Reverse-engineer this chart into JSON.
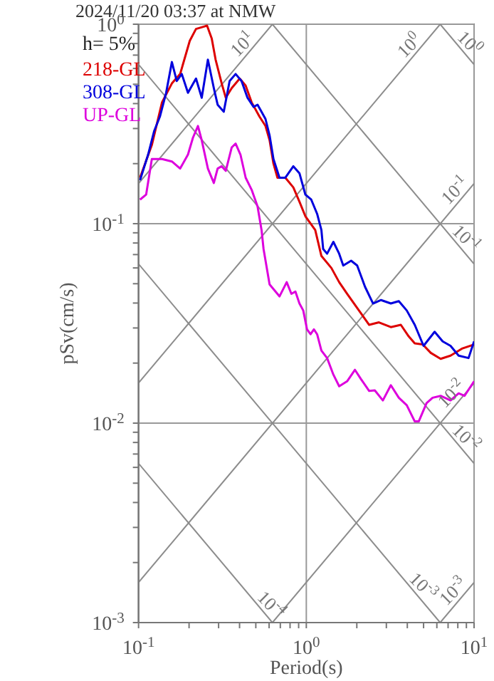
{
  "chart_data": {
    "type": "line",
    "title": "2024/11/20 03:37 at NMW",
    "xlabel": "Period(s)",
    "ylabel": "pSv(cm/s)",
    "log": "xy",
    "grid": true,
    "legend": "top left",
    "xlim": [
      0.1,
      10
    ],
    "ylim": [
      0.001,
      1
    ],
    "xticks": [
      {
        "value": 0.1,
        "label": "10$^{-1}$"
      },
      {
        "value": 0.2,
        "label": null
      },
      {
        "value": 0.3,
        "label": null
      },
      {
        "value": 0.4,
        "label": null
      },
      {
        "value": 0.5,
        "label": null
      },
      {
        "value": 0.6,
        "label": null
      },
      {
        "value": 0.7,
        "label": null
      },
      {
        "value": 0.8,
        "label": null
      },
      {
        "value": 0.9,
        "label": null
      },
      {
        "value": 1,
        "label": "10$^{0}$"
      },
      {
        "value": 2,
        "label": null
      },
      {
        "value": 3,
        "label": null
      },
      {
        "value": 4,
        "label": null
      },
      {
        "value": 5,
        "label": null
      },
      {
        "value": 6,
        "label": null
      },
      {
        "value": 7,
        "label": null
      },
      {
        "value": 8,
        "label": null
      },
      {
        "value": 9,
        "label": null
      },
      {
        "value": 10,
        "label": "10$^{1}$"
      }
    ],
    "yticks": [
      {
        "value": 0.001,
        "label": "10$^{-3}$"
      },
      {
        "value": 0.002,
        "label": null
      },
      {
        "value": 0.003,
        "label": null
      },
      {
        "value": 0.004,
        "label": null
      },
      {
        "value": 0.005,
        "label": null
      },
      {
        "value": 0.006,
        "label": null
      },
      {
        "value": 0.007,
        "label": null
      },
      {
        "value": 0.008,
        "label": null
      },
      {
        "value": 0.009,
        "label": null
      },
      {
        "value": 0.01,
        "label": "10$^{-2}$"
      },
      {
        "value": 0.02,
        "label": null
      },
      {
        "value": 0.03,
        "label": null
      },
      {
        "value": 0.04,
        "label": null
      },
      {
        "value": 0.05,
        "label": null
      },
      {
        "value": 0.06,
        "label": null
      },
      {
        "value": 0.07,
        "label": null
      },
      {
        "value": 0.08,
        "label": null
      },
      {
        "value": 0.09,
        "label": null
      },
      {
        "value": 0.1,
        "label": "10$^{-1}$"
      },
      {
        "value": 0.2,
        "label": null
      },
      {
        "value": 0.3,
        "label": null
      },
      {
        "value": 0.4,
        "label": null
      },
      {
        "value": 0.5,
        "label": null
      },
      {
        "value": 0.6,
        "label": null
      },
      {
        "value": 0.7,
        "label": null
      },
      {
        "value": 0.8,
        "label": null
      },
      {
        "value": 0.9,
        "label": null
      },
      {
        "value": 1,
        "label": "10$^{0}$"
      }
    ],
    "series": [
      {
        "color": "#8c8c8c",
        "x": [
          0.1,
          0.628
        ],
        "values": [
          0.159,
          1
        ]
      },
      {
        "color": "#8c8c8c",
        "x": [
          0.1,
          6.28
        ],
        "values": [
          0.0159,
          1
        ]
      },
      {
        "color": "#8c8c8c",
        "x": [
          0.1,
          10
        ],
        "values": [
          0.00159,
          0.159
        ]
      },
      {
        "color": "#8c8c8c",
        "x": [
          0.628,
          10
        ],
        "values": [
          0.001,
          0.0159
        ]
      },
      {
        "color": "#8c8c8c",
        "x": [
          6.28,
          10
        ],
        "values": [
          0.001,
          0.00159
        ]
      },
      {
        "color": "#8c8c8c",
        "x": [
          6.28,
          10
        ],
        "values": [
          1,
          0.628
        ]
      },
      {
        "color": "#8c8c8c",
        "x": [
          0.628,
          10
        ],
        "values": [
          1,
          0.0628
        ]
      },
      {
        "color": "#8c8c8c",
        "x": [
          0.1,
          10
        ],
        "values": [
          0.628,
          0.00628
        ]
      },
      {
        "color": "#8c8c8c",
        "x": [
          0.1,
          6.28
        ],
        "values": [
          0.0628,
          0.001
        ]
      },
      {
        "color": "#8c8c8c",
        "x": [
          0.1,
          0.628
        ],
        "values": [
          0.00628,
          0.001
        ]
      },
      {
        "name": "218-GL",
        "color": "#dd0000",
        "x": [
          0.102,
          0.12,
          0.138,
          0.158,
          0.177,
          0.202,
          0.22,
          0.245,
          0.256,
          0.273,
          0.288,
          0.313,
          0.331,
          0.359,
          0.401,
          0.435,
          0.472,
          0.526,
          0.571,
          0.604,
          0.637,
          0.673,
          0.75,
          0.837,
          0.91,
          0.987,
          1.13,
          1.23,
          1.41,
          1.57,
          1.75,
          2.06,
          2.37,
          2.71,
          3.19,
          3.66,
          4.08,
          4.43,
          4.94,
          5.52,
          6.32,
          7.24,
          8.53,
          10
        ],
        "values": [
          0.17,
          0.248,
          0.406,
          0.505,
          0.563,
          0.826,
          0.947,
          0.973,
          0.984,
          0.849,
          0.664,
          0.505,
          0.428,
          0.478,
          0.534,
          0.492,
          0.406,
          0.344,
          0.309,
          0.262,
          0.2,
          0.17,
          0.17,
          0.152,
          0.129,
          0.109,
          0.0929,
          0.0689,
          0.06,
          0.0509,
          0.0445,
          0.0367,
          0.0311,
          0.032,
          0.0303,
          0.0311,
          0.0272,
          0.0251,
          0.0248,
          0.0225,
          0.021,
          0.0218,
          0.0237,
          0.0248
        ]
      },
      {
        "name": "308-GL",
        "color": "#0000dd",
        "x": [
          0.102,
          0.114,
          0.124,
          0.134,
          0.146,
          0.158,
          0.169,
          0.181,
          0.197,
          0.22,
          0.238,
          0.259,
          0.281,
          0.296,
          0.322,
          0.349,
          0.379,
          0.411,
          0.446,
          0.485,
          0.512,
          0.541,
          0.571,
          0.604,
          0.637,
          0.692,
          0.75,
          0.837,
          0.91,
          0.987,
          1.07,
          1.16,
          1.23,
          1.26,
          1.33,
          1.45,
          1.57,
          1.66,
          1.85,
          2.01,
          2.24,
          2.5,
          2.79,
          3.19,
          3.56,
          3.97,
          4.43,
          5,
          5.82,
          6.5,
          7.24,
          8.09,
          9.27,
          10
        ],
        "values": [
          0.165,
          0.222,
          0.292,
          0.344,
          0.453,
          0.646,
          0.519,
          0.563,
          0.453,
          0.534,
          0.428,
          0.664,
          0.478,
          0.395,
          0.364,
          0.519,
          0.563,
          0.519,
          0.428,
          0.385,
          0.395,
          0.364,
          0.335,
          0.277,
          0.211,
          0.17,
          0.17,
          0.194,
          0.179,
          0.14,
          0.132,
          0.112,
          0.0929,
          0.0747,
          0.0707,
          0.0811,
          0.0707,
          0.0617,
          0.0652,
          0.0617,
          0.0482,
          0.0398,
          0.0414,
          0.0398,
          0.0409,
          0.0367,
          0.0311,
          0.0244,
          0.0287,
          0.0257,
          0.0244,
          0.0218,
          0.0212,
          0.0257
        ]
      },
      {
        "name": "UP-GL",
        "color": "#dd00dd",
        "x": [
          0.102,
          0.111,
          0.12,
          0.138,
          0.158,
          0.177,
          0.197,
          0.211,
          0.226,
          0.238,
          0.259,
          0.281,
          0.296,
          0.313,
          0.331,
          0.359,
          0.379,
          0.405,
          0.435,
          0.472,
          0.512,
          0.541,
          0.556,
          0.604,
          0.692,
          0.764,
          0.815,
          0.861,
          0.91,
          0.959,
          1.01,
          1.06,
          1.11,
          1.16,
          1.23,
          1.33,
          1.45,
          1.57,
          1.75,
          1.95,
          2.12,
          2.37,
          2.56,
          2.86,
          3.19,
          3.56,
          3.97,
          4.43,
          4.68,
          5.21,
          5.66,
          6.32,
          7.24,
          8.09,
          8.77,
          10
        ],
        "values": [
          0.132,
          0.14,
          0.211,
          0.211,
          0.205,
          0.189,
          0.222,
          0.27,
          0.309,
          0.262,
          0.189,
          0.16,
          0.189,
          0.194,
          0.184,
          0.241,
          0.252,
          0.222,
          0.17,
          0.148,
          0.122,
          0.0929,
          0.0747,
          0.0496,
          0.0432,
          0.0509,
          0.0445,
          0.0457,
          0.0398,
          0.0367,
          0.0295,
          0.0279,
          0.0295,
          0.0279,
          0.0231,
          0.0212,
          0.0175,
          0.0153,
          0.0162,
          0.0185,
          0.0166,
          0.0145,
          0.0146,
          0.013,
          0.0155,
          0.0134,
          0.0123,
          0.0102,
          0.0102,
          0.0126,
          0.0134,
          0.0137,
          0.013,
          0.0141,
          0.0137,
          0.0162
        ]
      }
    ],
    "annotations": [
      "h= 5%",
      {
        "text": "10$^{1}$",
        "x": 0.46,
        "y": 0.73
      },
      {
        "text": "10$^{0}$",
        "x": 4.55,
        "y": 0.72
      },
      {
        "text": "10$^{0}$",
        "x": 8.5,
        "y": 0.74
      },
      {
        "text": "10$^{-1}$",
        "x": 8.5,
        "y": 0.135
      },
      {
        "text": "10$^{-1}$",
        "x": 8.1,
        "y": 0.0776
      },
      {
        "text": "10$^{-2}$",
        "x": 8.1,
        "y": 0.0129
      },
      {
        "text": "10$^{-2}$",
        "x": 8.1,
        "y": 0.00775
      },
      {
        "text": "10$^{-3}$",
        "x": 8.3,
        "y": 0.00132
      },
      {
        "text": "10$^{-3}$",
        "x": 4.5,
        "y": 0.0014
      },
      {
        "text": "10$^{-4}$",
        "x": 0.558,
        "y": 0.00113
      }
    ]
  }
}
